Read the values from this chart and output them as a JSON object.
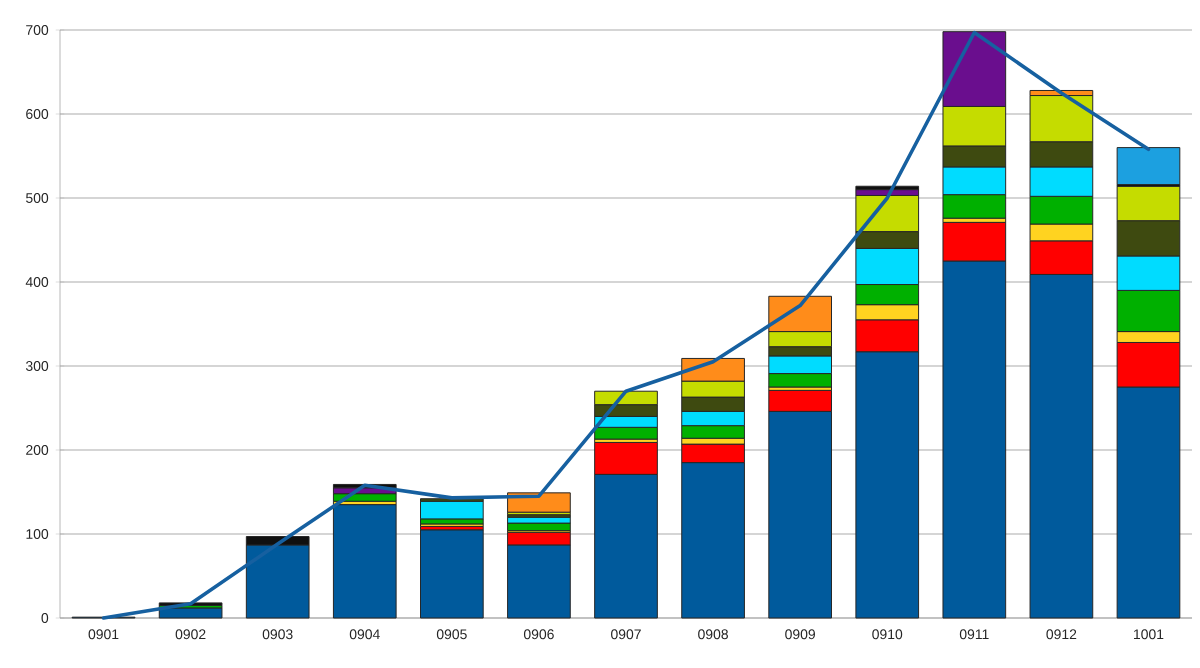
{
  "chart_data": {
    "type": "bar",
    "stacked": true,
    "categories": [
      "0901",
      "0902",
      "0903",
      "0904",
      "0905",
      "0906",
      "0907",
      "0908",
      "0909",
      "0910",
      "0911",
      "0912",
      "1001"
    ],
    "series": [
      {
        "color": "#005a9c",
        "values": [
          1,
          12,
          87,
          135,
          105,
          87,
          171,
          185,
          246,
          317,
          425,
          409,
          275
        ]
      },
      {
        "color": "#ff0000",
        "values": [
          null,
          null,
          null,
          null,
          4,
          15,
          38,
          22,
          25,
          38,
          46,
          40,
          53
        ]
      },
      {
        "color": "#ffd320",
        "values": [
          null,
          null,
          null,
          4,
          3,
          2,
          4,
          7,
          4,
          18,
          5,
          20,
          13
        ]
      },
      {
        "color": "#00b000",
        "values": [
          null,
          3,
          null,
          9,
          6,
          9,
          14,
          15,
          16,
          24,
          28,
          33,
          49
        ]
      },
      {
        "color": "#00dcff",
        "values": [
          null,
          null,
          null,
          null,
          21,
          7,
          13,
          17,
          21,
          43,
          33,
          35,
          41
        ]
      },
      {
        "color": "#3e4a10",
        "values": [
          null,
          null,
          null,
          null,
          3,
          3,
          14,
          17,
          11,
          20,
          25,
          30,
          42
        ]
      },
      {
        "color": "#c5dc00",
        "values": [
          null,
          null,
          null,
          null,
          null,
          3,
          16,
          19,
          18,
          43,
          47,
          55,
          41
        ]
      },
      {
        "color": "#ff8c1a",
        "values": [
          null,
          null,
          null,
          null,
          null,
          23,
          null,
          27,
          42,
          null,
          null,
          6,
          null
        ]
      },
      {
        "color": "#6a0e8e",
        "values": [
          null,
          null,
          null,
          7,
          null,
          null,
          null,
          null,
          null,
          7,
          89,
          null,
          null
        ]
      },
      {
        "color": "#101010",
        "values": [
          null,
          3,
          10,
          4,
          null,
          null,
          null,
          null,
          null,
          4,
          null,
          null,
          2
        ]
      },
      {
        "color": "#1ca0e0",
        "values": [
          null,
          null,
          null,
          null,
          null,
          null,
          null,
          null,
          null,
          null,
          null,
          null,
          44
        ]
      },
      {
        "type": "line",
        "color": "#1660a0",
        "values": [
          0,
          17,
          88,
          158,
          143,
          145,
          270,
          305,
          372,
          500,
          697,
          625,
          558
        ]
      }
    ],
    "ylim": [
      0,
      700
    ],
    "yticks": [
      0,
      100,
      200,
      300,
      400,
      500,
      600,
      700
    ],
    "grid": "y"
  }
}
